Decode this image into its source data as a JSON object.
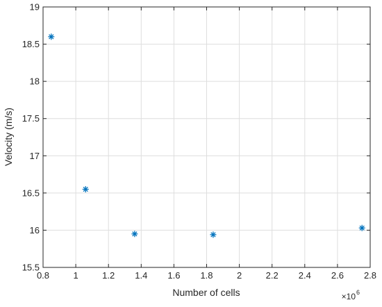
{
  "chart_data": {
    "type": "scatter",
    "title": "",
    "xlabel": "Number of cells",
    "ylabel": "Velocity (m/s)",
    "x_exponent_label": "×10",
    "x_exponent_power": "6",
    "x_scale": 1000000,
    "xlim": [
      800000,
      2800000
    ],
    "ylim": [
      15.5,
      19
    ],
    "x_ticks": [
      "0.8",
      "1",
      "1.2",
      "1.4",
      "1.6",
      "1.8",
      "2",
      "2.2",
      "2.4",
      "2.6",
      "2.8"
    ],
    "y_ticks": [
      "15.5",
      "16",
      "16.5",
      "17",
      "17.5",
      "18",
      "18.5",
      "19"
    ],
    "grid": true,
    "marker": "asterisk",
    "marker_color": "#0072BD",
    "series": [
      {
        "x": [
          850000,
          1060000,
          1360000,
          1840000,
          2750000
        ],
        "y": [
          18.6,
          16.55,
          15.95,
          15.94,
          16.03
        ]
      }
    ]
  }
}
